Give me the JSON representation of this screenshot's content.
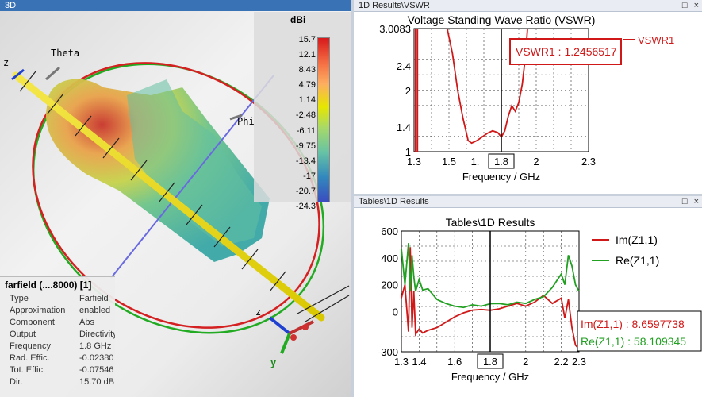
{
  "viewer3d": {
    "title": "3D",
    "label_theta": "Theta",
    "label_phi": "Phi",
    "axis_z": "z",
    "axis_y": "y",
    "colorbar": {
      "title": "dBi",
      "ticks": [
        "15.7",
        "12.1",
        "8.43",
        "4.79",
        "1.14",
        "-2.48",
        "-6.11",
        "-9.75",
        "-13.4",
        "-17",
        "-20.7",
        "-24.3"
      ]
    },
    "info": {
      "title": "farfield (....8000) [1]",
      "rows": [
        {
          "k": "Type",
          "v": "Farfield"
        },
        {
          "k": "Approximation",
          "v": "enabled"
        },
        {
          "k": "Component",
          "v": "Abs"
        },
        {
          "k": "Output",
          "v": "Directivity"
        },
        {
          "k": "Frequency",
          "v": "1.8 GHz"
        },
        {
          "k": "Rad. Effic.",
          "v": "-0.02380"
        },
        {
          "k": "Tot. Effic.",
          "v": "-0.07546"
        },
        {
          "k": "Dir.",
          "v": "15.70 dB"
        }
      ]
    }
  },
  "vswr_panel": {
    "window_title": "1D Results\\VSWR",
    "buttons": [
      "□",
      "×"
    ]
  },
  "tables_panel": {
    "window_title": "Tables\\1D Results",
    "buttons": [
      "□",
      "×"
    ]
  },
  "chart_data": [
    {
      "type": "line",
      "title": "Voltage Standing Wave Ratio (VSWR)",
      "xlabel": "Frequency / GHz",
      "ylabel": "",
      "xlim": [
        1.3,
        2.3
      ],
      "ylim": [
        1,
        3.0083
      ],
      "xticks": [
        "1.3",
        "1.5",
        "1.",
        "1.8",
        "2",
        "2.3"
      ],
      "yticks": [
        "3.0083",
        "2.4",
        "2",
        "1.4",
        "1"
      ],
      "marker": {
        "x": 1.8,
        "label": "1.8",
        "readout": "VSWR1 : 1.2456517"
      },
      "series": [
        {
          "name": "VSWR1",
          "color": "#d01818",
          "x": [
            1.49,
            1.52,
            1.55,
            1.58,
            1.61,
            1.63,
            1.66,
            1.69,
            1.72,
            1.75,
            1.78,
            1.8,
            1.82,
            1.84,
            1.86,
            1.88,
            1.9,
            1.92,
            1.94,
            1.95
          ],
          "y": [
            3.0083,
            2.6,
            2.0,
            1.55,
            1.18,
            1.14,
            1.18,
            1.24,
            1.3,
            1.34,
            1.31,
            1.24,
            1.34,
            1.58,
            1.75,
            1.66,
            1.8,
            2.1,
            2.6,
            3.0083
          ]
        }
      ],
      "extra_lines": [
        {
          "x": 1.3,
          "y0": 1,
          "y1": 3.0083
        },
        {
          "x": 1.31,
          "y0": 1,
          "y1": 3.0083
        }
      ]
    },
    {
      "type": "line",
      "title": "Tables\\1D Results",
      "xlabel": "Frequency / GHz",
      "ylabel": "",
      "xlim": [
        1.3,
        2.3
      ],
      "ylim": [
        -300,
        600
      ],
      "xticks": [
        "1.3",
        "1.4",
        "1.6",
        "1.8",
        "2",
        "2.2",
        "2.3"
      ],
      "yticks": [
        "600",
        "400",
        "200",
        "0",
        "-300"
      ],
      "marker": {
        "x": 1.8,
        "label": "1.8",
        "readouts": [
          "Im(Z1,1) : 8.6597738",
          "Re(Z1,1) : 58.109345"
        ]
      },
      "series": [
        {
          "name": "Im(Z1,1)",
          "color": "#d01818",
          "x": [
            1.3,
            1.32,
            1.34,
            1.35,
            1.36,
            1.37,
            1.38,
            1.4,
            1.42,
            1.45,
            1.5,
            1.55,
            1.6,
            1.65,
            1.7,
            1.75,
            1.8,
            1.85,
            1.9,
            1.95,
            2.0,
            2.05,
            2.1,
            2.15,
            2.2,
            2.22,
            2.24,
            2.26,
            2.28,
            2.3
          ],
          "y": [
            100,
            200,
            -150,
            480,
            -120,
            150,
            -170,
            -130,
            -160,
            -140,
            -120,
            -80,
            -40,
            -10,
            10,
            15,
            9,
            20,
            40,
            60,
            40,
            70,
            120,
            60,
            100,
            -50,
            90,
            -120,
            -250,
            -280
          ]
        },
        {
          "name": "Re(Z1,1)",
          "color": "#22a022",
          "x": [
            1.3,
            1.32,
            1.34,
            1.35,
            1.36,
            1.37,
            1.38,
            1.4,
            1.42,
            1.45,
            1.5,
            1.55,
            1.6,
            1.65,
            1.7,
            1.75,
            1.8,
            1.85,
            1.9,
            1.95,
            2.0,
            2.05,
            2.1,
            2.15,
            2.2,
            2.22,
            2.24,
            2.26,
            2.28,
            2.3
          ],
          "y": [
            470,
            200,
            510,
            150,
            420,
            260,
            150,
            240,
            160,
            170,
            90,
            60,
            40,
            30,
            50,
            40,
            58,
            60,
            50,
            70,
            60,
            90,
            110,
            180,
            280,
            200,
            420,
            340,
            200,
            150
          ]
        }
      ]
    }
  ]
}
